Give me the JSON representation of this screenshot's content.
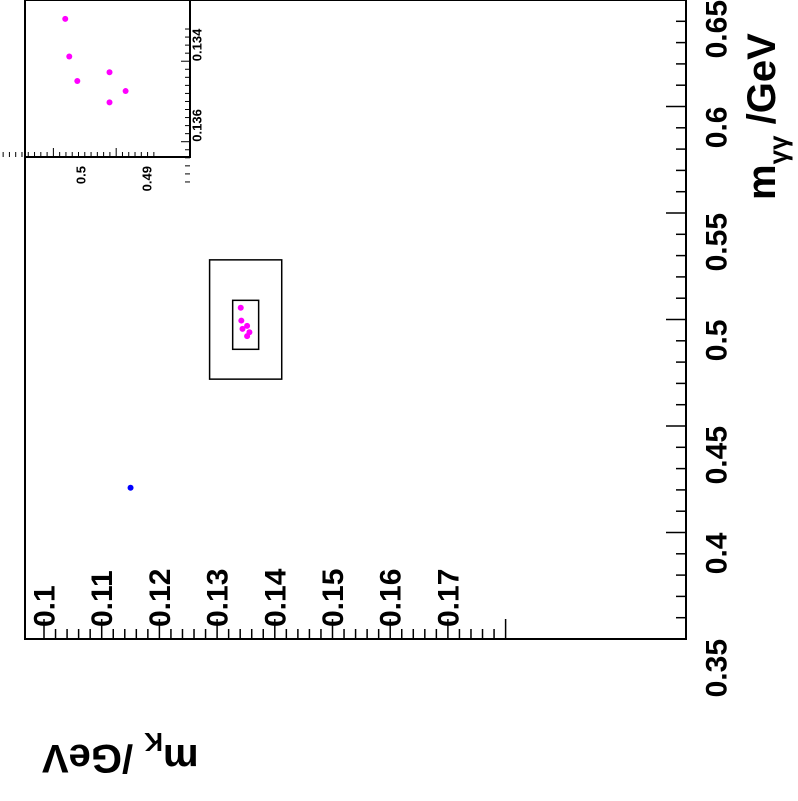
{
  "chart_data": [
    {
      "type": "scatter",
      "xlabel": "m_K /GeV",
      "ylabel": "m_γγ /GeV",
      "xlim": [
        0.35,
        0.65
      ],
      "ylim": [
        0.09,
        0.178
      ],
      "x_ticks": [
        "0.65",
        "0.6",
        "0.55",
        "0.5",
        "0.45",
        "0.4",
        "0.35"
      ],
      "y_ticks": [
        "0.1",
        "0.11",
        "0.12",
        "0.13",
        "0.14",
        "0.15",
        "0.16",
        "0.17"
      ],
      "reversed_x": true,
      "grid": false,
      "colors": {
        "magenta": "#ff00ff",
        "blue": "#0000ff",
        "frame": "#000000"
      },
      "regions": [
        {
          "name": "outer-box",
          "x": [
            0.472,
            0.528
          ],
          "y": [
            0.1287,
            0.1412
          ]
        },
        {
          "name": "inner-box",
          "x": [
            0.486,
            0.509
          ],
          "y": [
            0.1327,
            0.1372
          ]
        }
      ],
      "series": [
        {
          "color": "#ff00ff",
          "points": [
            {
              "x": 0.5055,
              "y": 0.1341
            },
            {
              "x": 0.4995,
              "y": 0.1342
            },
            {
              "x": 0.497,
              "y": 0.1352
            },
            {
              "x": 0.4956,
              "y": 0.1344
            },
            {
              "x": 0.494,
              "y": 0.1356
            },
            {
              "x": 0.4922,
              "y": 0.1352
            }
          ]
        },
        {
          "color": "#0000ff",
          "points": [
            {
              "x": 0.421,
              "y": 0.115
            }
          ]
        }
      ]
    },
    {
      "type": "scatter",
      "role": "inset",
      "xlim": [
        0.4835,
        0.5085
      ],
      "ylim": [
        0.1331,
        0.1372
      ],
      "x_ticks": [
        "0.5",
        "0.49"
      ],
      "y_ticks": [
        "0.134",
        "0.136"
      ],
      "reversed_x": true,
      "colors": {
        "magenta": "#ff00ff"
      },
      "series": [
        {
          "color": "#ff00ff",
          "points": [
            {
              "x": 0.5055,
              "y": 0.1341
            },
            {
              "x": 0.4995,
              "y": 0.1342
            },
            {
              "x": 0.497,
              "y": 0.1352
            },
            {
              "x": 0.4956,
              "y": 0.1344
            },
            {
              "x": 0.494,
              "y": 0.1356
            },
            {
              "x": 0.4922,
              "y": 0.1352
            }
          ]
        }
      ]
    }
  ]
}
